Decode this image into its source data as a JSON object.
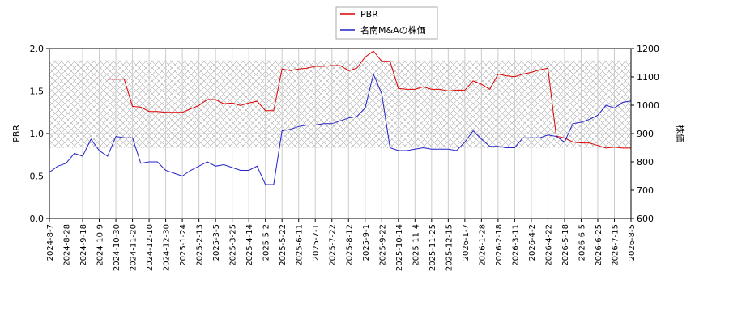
{
  "chart_data": {
    "type": "line",
    "categories": [
      "2024-8-7",
      null,
      "2024-8-28",
      null,
      "2024-9-18",
      null,
      "2024-10-9",
      null,
      "2024-10-30",
      null,
      "2024-11-20",
      null,
      "2024-12-10",
      null,
      "2024-12-30",
      null,
      "2025-1-24",
      null,
      "2025-2-13",
      null,
      "2025-3-5",
      null,
      "2025-3-25",
      null,
      "2025-4-14",
      null,
      "2025-5-2",
      null,
      "2025-5-22",
      null,
      "2025-6-11",
      null,
      "2025-7-1",
      null,
      "2025-7-22",
      null,
      "2025-8-12",
      null,
      "2025-9-1",
      null,
      "2025-9-22",
      null,
      "2025-10-14",
      null,
      "2025-11-4",
      null,
      "2025-11-25",
      null,
      "2025-12-15",
      null,
      "2026-1-7",
      null,
      "2026-1-28",
      null,
      "2026-2-18",
      null,
      "2026-3-11",
      null,
      "2026-4-2",
      null,
      "2026-4-22",
      null,
      "2026-5-18",
      null,
      "2026-6-5",
      null,
      "2026-6-25",
      null,
      "2026-7-15",
      null,
      "2026-8-5"
    ],
    "series": [
      {
        "name": "PBR",
        "color": "#dd0000",
        "axis": "y",
        "values": [
          null,
          null,
          null,
          null,
          null,
          null,
          null,
          1.64,
          1.64,
          1.64,
          1.32,
          1.31,
          1.26,
          1.26,
          1.25,
          1.25,
          1.25,
          1.29,
          1.33,
          1.4,
          1.4,
          1.35,
          1.36,
          1.33,
          1.36,
          1.38,
          1.27,
          1.27,
          1.76,
          1.74,
          1.76,
          1.77,
          1.79,
          1.79,
          1.8,
          1.8,
          1.74,
          1.77,
          1.9,
          1.97,
          1.85,
          1.85,
          1.53,
          1.52,
          1.52,
          1.55,
          1.52,
          1.52,
          1.5,
          1.51,
          1.51,
          1.62,
          1.58,
          1.52,
          1.7,
          1.68,
          1.67,
          1.7,
          1.72,
          1.75,
          1.77,
          0.97,
          0.95,
          0.9,
          0.89,
          0.89,
          0.86,
          0.83,
          0.84,
          0.83,
          0.83
        ]
      },
      {
        "name": "名南M&Aの株価",
        "color": "#2222cc",
        "axis": "y2",
        "values": [
          763,
          785,
          795,
          830,
          820,
          880,
          840,
          820,
          890,
          885,
          885,
          795,
          800,
          800,
          770,
          760,
          750,
          770,
          785,
          800,
          785,
          790,
          780,
          770,
          770,
          785,
          720,
          720,
          910,
          915,
          925,
          930,
          930,
          935,
          935,
          945,
          955,
          960,
          990,
          1110,
          1040,
          850,
          840,
          840,
          845,
          850,
          845,
          845,
          845,
          840,
          870,
          910,
          880,
          855,
          855,
          850,
          850,
          885,
          885,
          885,
          895,
          890,
          870,
          935,
          940,
          950,
          965,
          1000,
          990,
          1010,
          1015
        ]
      }
    ],
    "y_label": "PBR",
    "y2_label": "株価",
    "ylim": [
      0,
      2
    ],
    "yticks": [
      {
        "value": 0,
        "label": "0.0"
      },
      {
        "value": 0.5,
        "label": "0.5"
      },
      {
        "value": 1,
        "label": "1.0"
      },
      {
        "value": 1.5,
        "label": "1.5"
      },
      {
        "value": 2,
        "label": "2.0"
      }
    ],
    "y2lim": [
      600,
      1200
    ],
    "y2ticks": [
      600,
      700,
      800,
      900,
      1000,
      1100,
      1200
    ],
    "shaded_range": [
      0.83,
      1.86
    ],
    "grid": true,
    "legend": "top"
  }
}
